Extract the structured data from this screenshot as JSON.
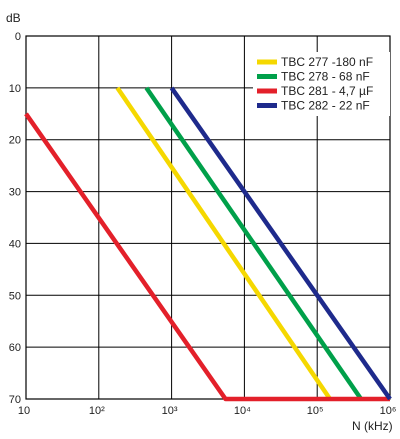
{
  "chart_data": {
    "type": "line",
    "title": "",
    "xlabel": "N (kHz)",
    "ylabel": "dB",
    "x_scale": "log",
    "xlim": [
      10,
      1000000
    ],
    "ylim": [
      0,
      70
    ],
    "y_inverted": true,
    "grid": true,
    "legend_position": "top-right",
    "x_ticks": [
      {
        "value": 10,
        "label": "10"
      },
      {
        "value": 100,
        "label": "10²"
      },
      {
        "value": 1000,
        "label": "10³"
      },
      {
        "value": 10000,
        "label": "10⁴"
      },
      {
        "value": 100000,
        "label": "10⁵"
      },
      {
        "value": 1000000,
        "label": "10⁶"
      }
    ],
    "y_ticks": [
      {
        "value": 0,
        "label": "0"
      },
      {
        "value": 10,
        "label": "10"
      },
      {
        "value": 20,
        "label": "20"
      },
      {
        "value": 30,
        "label": "30"
      },
      {
        "value": 40,
        "label": "40"
      },
      {
        "value": 50,
        "label": "50"
      },
      {
        "value": 60,
        "label": "60"
      },
      {
        "value": 70,
        "label": "70"
      }
    ],
    "series": [
      {
        "name": "TBC 277 -180 nF",
        "color": "#f5d800",
        "x": [
          180,
          150000
        ],
        "y": [
          10,
          70
        ]
      },
      {
        "name": "TBC 278 -  68 nF",
        "color": "#00a04a",
        "x": [
          450,
          400000
        ],
        "y": [
          10,
          70
        ]
      },
      {
        "name": "TBC 281 - 4,7 µF",
        "color": "#e3202a",
        "x": [
          10,
          5500,
          1000000
        ],
        "y": [
          15,
          70,
          70
        ]
      },
      {
        "name": "TBC 282 -  22 nF",
        "color": "#1e2a8c",
        "x": [
          1000,
          1000000
        ],
        "y": [
          10,
          70
        ]
      }
    ]
  }
}
